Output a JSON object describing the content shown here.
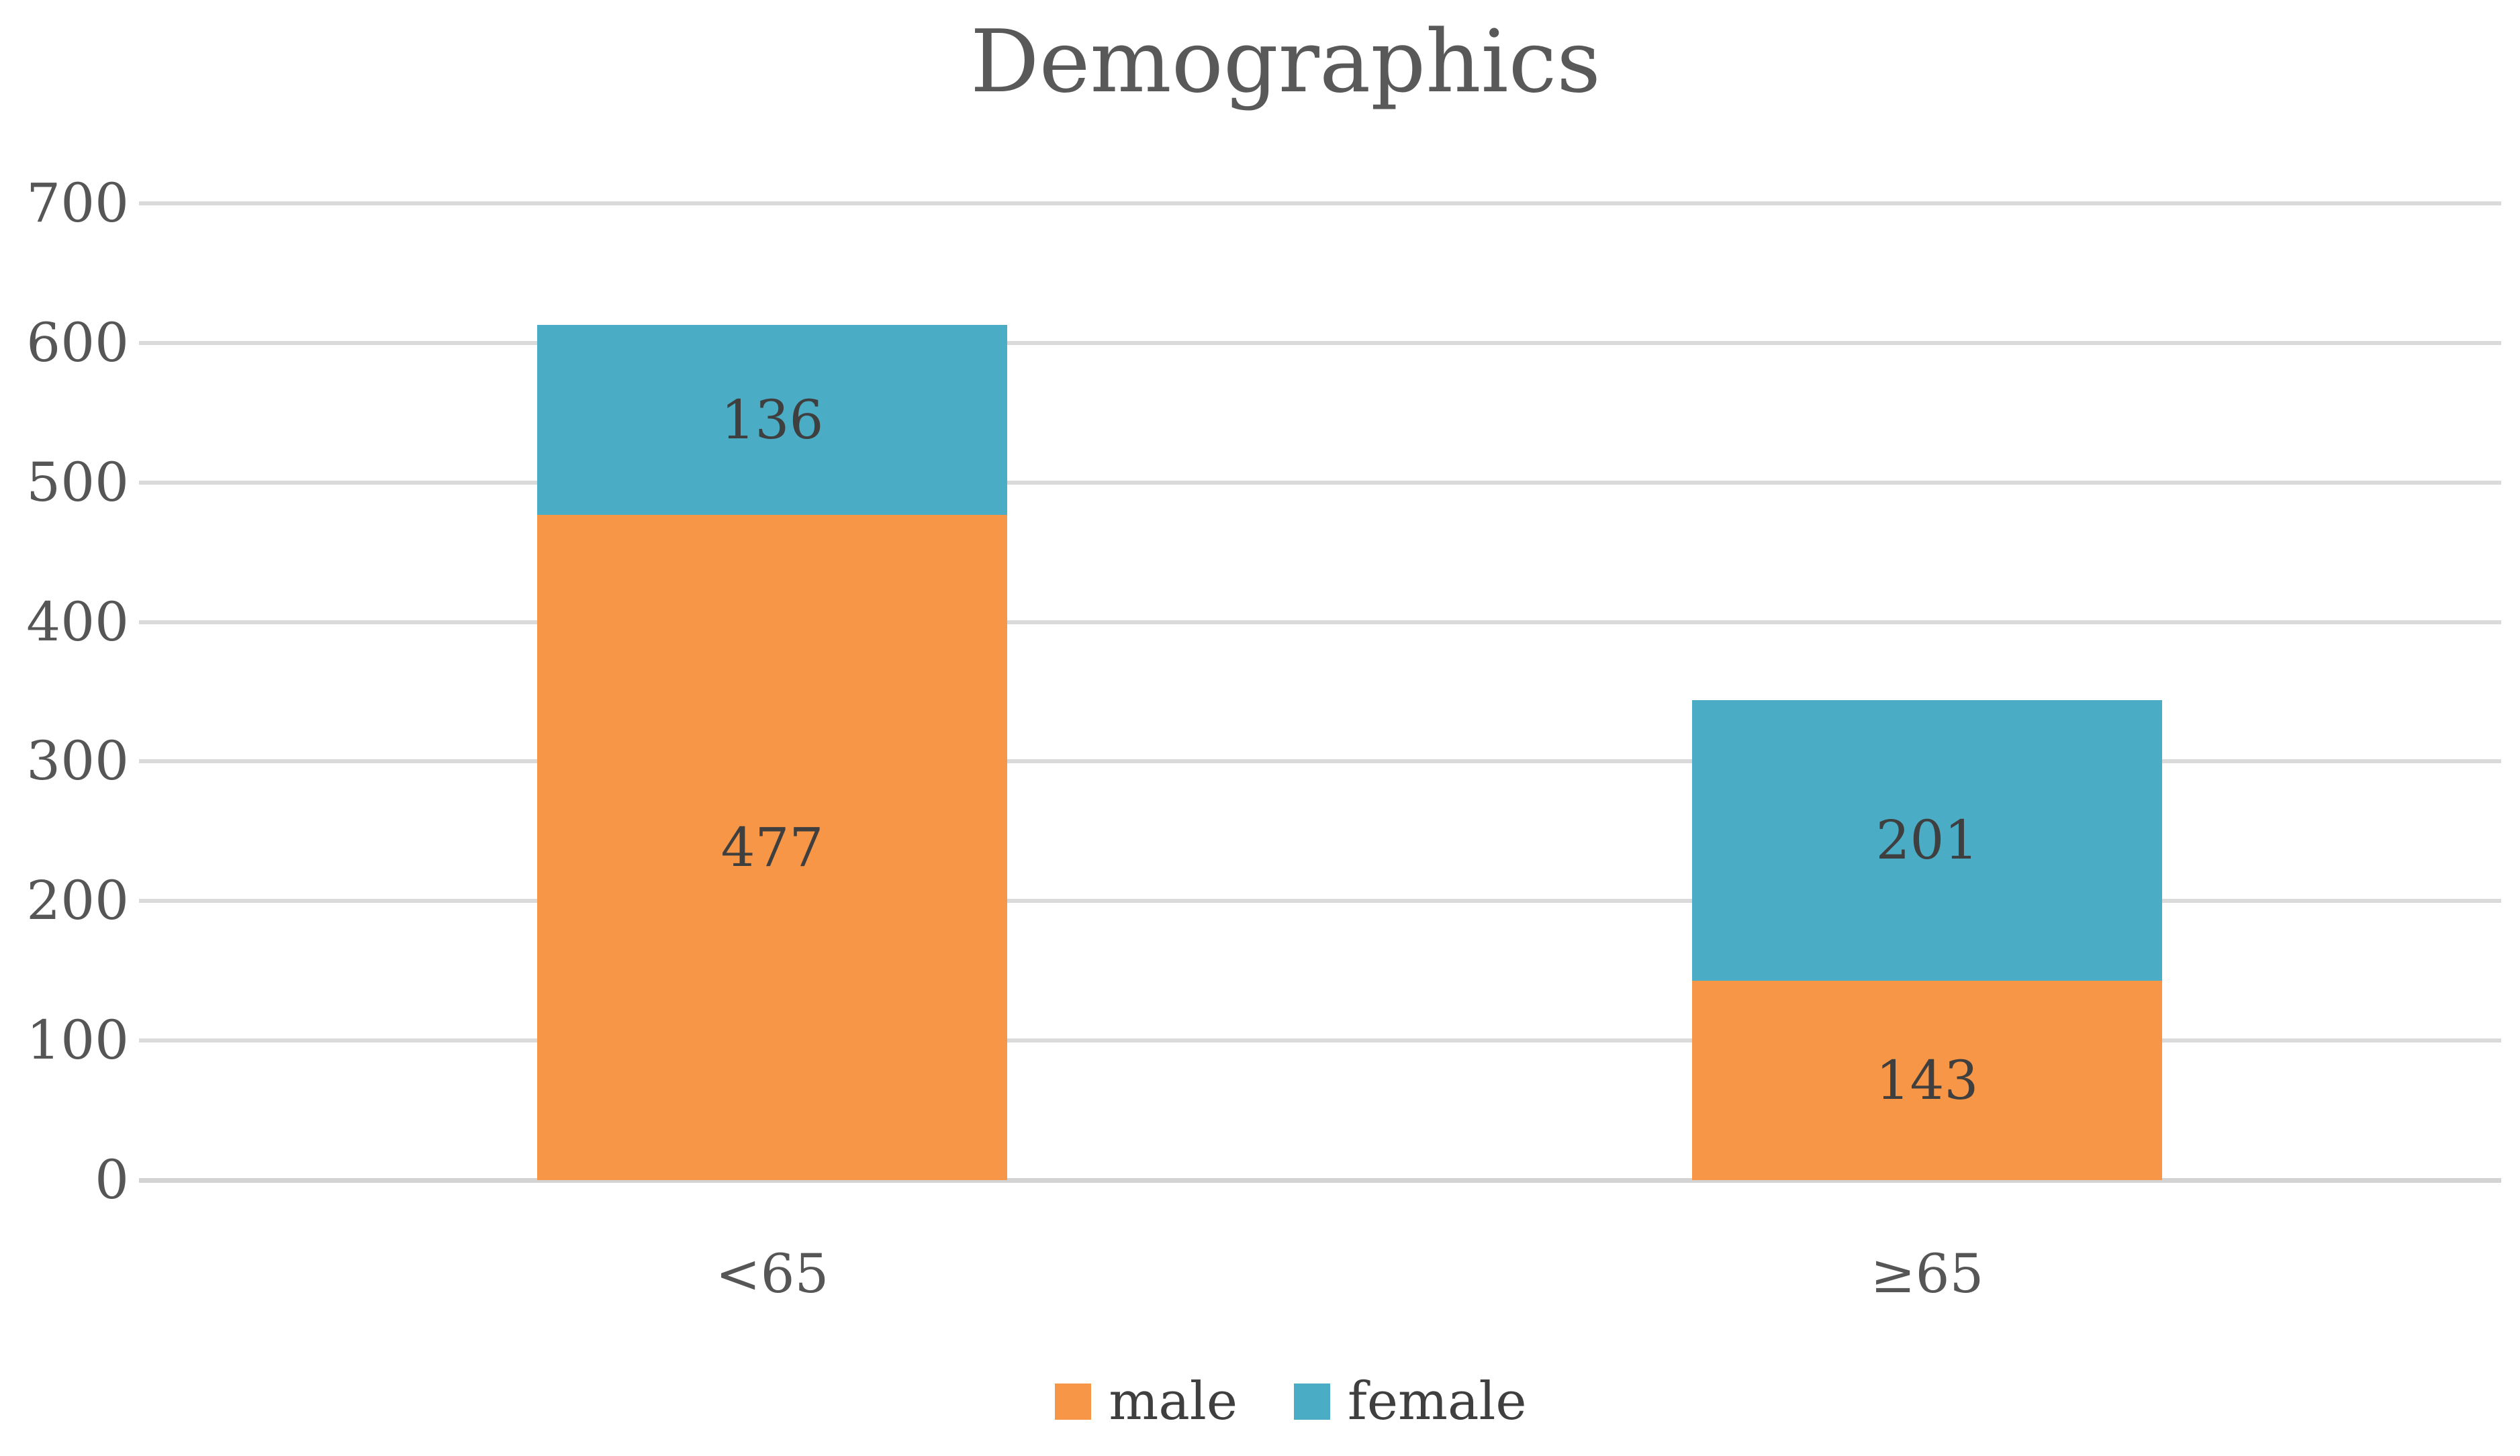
{
  "chart_data": {
    "type": "bar",
    "stacked": true,
    "title": "Demographics",
    "categories": [
      "<65",
      "≥65"
    ],
    "series": [
      {
        "name": "male",
        "color": "#F79646",
        "values": [
          477,
          143
        ]
      },
      {
        "name": "female",
        "color": "#4BACC6",
        "values": [
          136,
          201
        ]
      }
    ],
    "data_labels": {
      "male": [
        "477",
        "143"
      ],
      "female": [
        "136",
        "201"
      ]
    },
    "ylim": [
      0,
      700
    ],
    "yticks": [
      0,
      100,
      200,
      300,
      400,
      500,
      600,
      700
    ],
    "grid": true,
    "legend_position": "bottom",
    "legend_entries": [
      "male",
      "female"
    ],
    "text_colors": {
      "title": "#595959",
      "axis": "#565656",
      "data_label": "#3F3F3F"
    },
    "gridline_color": "#DADADA"
  }
}
